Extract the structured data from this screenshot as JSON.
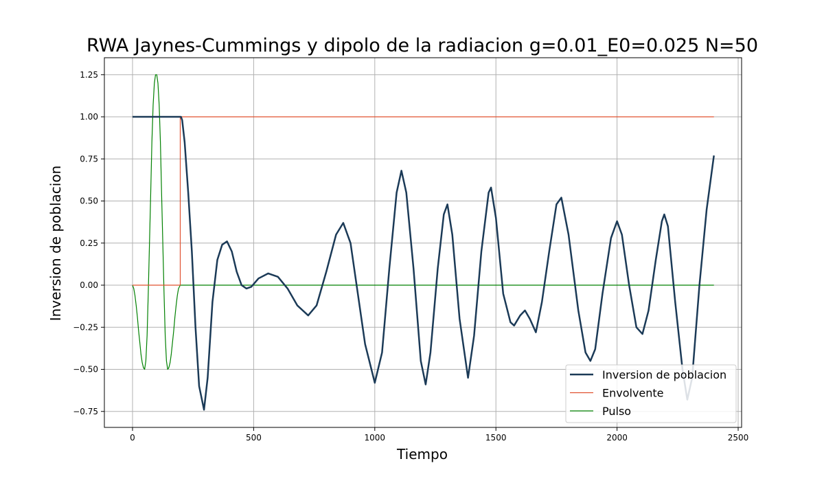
{
  "chart_data": {
    "type": "line",
    "title": "RWA Jaynes-Cummings y dipolo de la radiacion g=0.01_E0=0.025 N=50",
    "xlabel": "Tiempo",
    "ylabel": "Inversion de poblacion",
    "xlim": [
      -120,
      2520
    ],
    "ylim": [
      -0.85,
      1.35
    ],
    "xticks": [
      0,
      500,
      1000,
      1500,
      2000,
      2500
    ],
    "yticks": [
      -0.75,
      -0.5,
      -0.25,
      0.0,
      0.25,
      0.5,
      0.75,
      1.0,
      1.25
    ],
    "xtick_labels": [
      "0",
      "500",
      "1000",
      "1500",
      "2000",
      "2500"
    ],
    "ytick_labels": [
      "−0.75",
      "−0.50",
      "−0.25",
      "0.00",
      "0.25",
      "0.50",
      "0.75",
      "1.00",
      "1.25"
    ],
    "grid": true,
    "legend": {
      "position": "bottom-right"
    },
    "series": [
      {
        "name": "Inversion de poblacion",
        "color": "#1b3a57",
        "points": [
          [
            0,
            1.0
          ],
          [
            200,
            1.0
          ],
          [
            205,
            0.98
          ],
          [
            215,
            0.85
          ],
          [
            230,
            0.55
          ],
          [
            245,
            0.2
          ],
          [
            260,
            -0.25
          ],
          [
            275,
            -0.6
          ],
          [
            295,
            -0.74
          ],
          [
            310,
            -0.55
          ],
          [
            330,
            -0.1
          ],
          [
            350,
            0.15
          ],
          [
            370,
            0.24
          ],
          [
            390,
            0.26
          ],
          [
            410,
            0.2
          ],
          [
            430,
            0.08
          ],
          [
            450,
            0.0
          ],
          [
            470,
            -0.02
          ],
          [
            490,
            -0.01
          ],
          [
            520,
            0.04
          ],
          [
            560,
            0.07
          ],
          [
            600,
            0.05
          ],
          [
            640,
            -0.02
          ],
          [
            680,
            -0.12
          ],
          [
            725,
            -0.18
          ],
          [
            760,
            -0.12
          ],
          [
            800,
            0.08
          ],
          [
            840,
            0.3
          ],
          [
            870,
            0.37
          ],
          [
            900,
            0.25
          ],
          [
            930,
            -0.05
          ],
          [
            960,
            -0.35
          ],
          [
            1000,
            -0.58
          ],
          [
            1030,
            -0.4
          ],
          [
            1060,
            0.1
          ],
          [
            1090,
            0.55
          ],
          [
            1110,
            0.68
          ],
          [
            1130,
            0.55
          ],
          [
            1160,
            0.1
          ],
          [
            1190,
            -0.45
          ],
          [
            1210,
            -0.59
          ],
          [
            1230,
            -0.4
          ],
          [
            1260,
            0.1
          ],
          [
            1285,
            0.42
          ],
          [
            1300,
            0.48
          ],
          [
            1320,
            0.3
          ],
          [
            1350,
            -0.2
          ],
          [
            1385,
            -0.55
          ],
          [
            1410,
            -0.3
          ],
          [
            1440,
            0.2
          ],
          [
            1470,
            0.55
          ],
          [
            1480,
            0.58
          ],
          [
            1500,
            0.4
          ],
          [
            1530,
            -0.05
          ],
          [
            1560,
            -0.22
          ],
          [
            1575,
            -0.24
          ],
          [
            1600,
            -0.18
          ],
          [
            1620,
            -0.15
          ],
          [
            1640,
            -0.2
          ],
          [
            1665,
            -0.28
          ],
          [
            1690,
            -0.1
          ],
          [
            1720,
            0.2
          ],
          [
            1750,
            0.48
          ],
          [
            1770,
            0.52
          ],
          [
            1800,
            0.3
          ],
          [
            1840,
            -0.15
          ],
          [
            1870,
            -0.4
          ],
          [
            1890,
            -0.45
          ],
          [
            1910,
            -0.38
          ],
          [
            1940,
            -0.05
          ],
          [
            1975,
            0.28
          ],
          [
            2000,
            0.38
          ],
          [
            2020,
            0.3
          ],
          [
            2050,
            0.0
          ],
          [
            2080,
            -0.25
          ],
          [
            2105,
            -0.29
          ],
          [
            2130,
            -0.15
          ],
          [
            2160,
            0.15
          ],
          [
            2185,
            0.38
          ],
          [
            2195,
            0.42
          ],
          [
            2210,
            0.35
          ],
          [
            2240,
            -0.1
          ],
          [
            2270,
            -0.5
          ],
          [
            2290,
            -0.68
          ],
          [
            2310,
            -0.55
          ],
          [
            2340,
            0.0
          ],
          [
            2370,
            0.45
          ],
          [
            2400,
            0.77
          ]
        ]
      },
      {
        "name": "Envolvente",
        "color": "#e0502f",
        "points": [
          [
            0,
            0.0
          ],
          [
            197,
            0.0
          ],
          [
            197,
            1.0
          ],
          [
            2400,
            1.0
          ]
        ]
      },
      {
        "name": "Pulso",
        "color": "#008000",
        "points": [
          [
            0,
            0.0
          ],
          [
            5,
            -0.02
          ],
          [
            10,
            -0.06
          ],
          [
            15,
            -0.12
          ],
          [
            20,
            -0.19
          ],
          [
            25,
            -0.27
          ],
          [
            30,
            -0.34
          ],
          [
            35,
            -0.41
          ],
          [
            40,
            -0.46
          ],
          [
            45,
            -0.49
          ],
          [
            50,
            -0.5
          ],
          [
            55,
            -0.45
          ],
          [
            60,
            -0.3
          ],
          [
            65,
            -0.05
          ],
          [
            70,
            0.25
          ],
          [
            75,
            0.55
          ],
          [
            80,
            0.85
          ],
          [
            85,
            1.07
          ],
          [
            90,
            1.2
          ],
          [
            95,
            1.25
          ],
          [
            100,
            1.25
          ],
          [
            105,
            1.2
          ],
          [
            110,
            1.07
          ],
          [
            115,
            0.85
          ],
          [
            120,
            0.55
          ],
          [
            125,
            0.25
          ],
          [
            130,
            -0.05
          ],
          [
            135,
            -0.3
          ],
          [
            140,
            -0.45
          ],
          [
            145,
            -0.5
          ],
          [
            150,
            -0.49
          ],
          [
            155,
            -0.46
          ],
          [
            160,
            -0.41
          ],
          [
            165,
            -0.34
          ],
          [
            170,
            -0.27
          ],
          [
            175,
            -0.19
          ],
          [
            180,
            -0.12
          ],
          [
            185,
            -0.06
          ],
          [
            190,
            -0.02
          ],
          [
            197,
            0.0
          ],
          [
            2400,
            0.0
          ]
        ]
      }
    ]
  }
}
